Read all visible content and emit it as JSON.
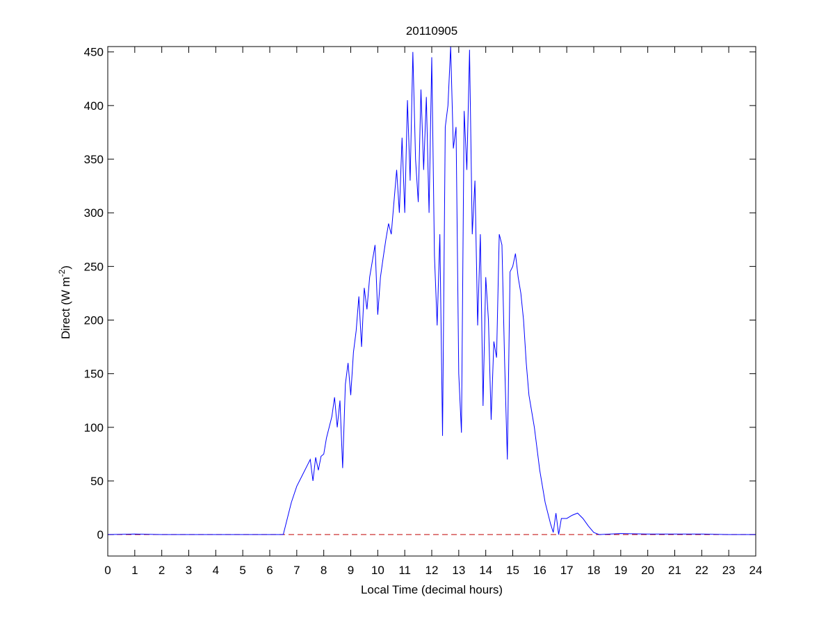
{
  "chart_data": {
    "type": "line",
    "title": "20110905",
    "xlabel": "Local Time (decimal hours)",
    "ylabel": {
      "text": "Direct (W m",
      "sup": "-2",
      "end": ")"
    },
    "x": [
      0,
      1,
      2,
      3,
      4,
      5,
      6,
      6.5,
      6.6,
      6.8,
      7,
      7.2,
      7.4,
      7.5,
      7.6,
      7.7,
      7.8,
      7.9,
      8,
      8.1,
      8.2,
      8.3,
      8.4,
      8.5,
      8.6,
      8.7,
      8.8,
      8.9,
      9,
      9.1,
      9.2,
      9.3,
      9.4,
      9.5,
      9.6,
      9.7,
      9.8,
      9.9,
      10,
      10.1,
      10.2,
      10.3,
      10.4,
      10.5,
      10.6,
      10.7,
      10.8,
      10.9,
      11,
      11.1,
      11.2,
      11.3,
      11.4,
      11.5,
      11.6,
      11.7,
      11.8,
      11.9,
      12,
      12.1,
      12.2,
      12.3,
      12.4,
      12.5,
      12.6,
      12.7,
      12.8,
      12.9,
      13,
      13.1,
      13.2,
      13.3,
      13.4,
      13.5,
      13.6,
      13.7,
      13.8,
      13.9,
      14,
      14.1,
      14.2,
      14.3,
      14.4,
      14.5,
      14.6,
      14.7,
      14.8,
      14.9,
      15,
      15.1,
      15.2,
      15.3,
      15.4,
      15.5,
      15.6,
      15.8,
      16,
      16.2,
      16.4,
      16.5,
      16.6,
      16.7,
      16.8,
      17,
      17.2,
      17.4,
      17.6,
      17.8,
      18,
      18.2,
      19,
      20,
      21,
      22,
      23,
      24
    ],
    "series": [
      {
        "color": "#0000ff",
        "values": [
          0,
          0.5,
          0,
          0,
          0,
          0,
          0,
          0,
          10,
          30,
          45,
          55,
          65,
          70,
          50,
          72,
          60,
          73,
          75,
          90,
          100,
          110,
          128,
          100,
          125,
          62,
          140,
          160,
          130,
          170,
          190,
          222,
          175,
          230,
          210,
          240,
          255,
          270,
          205,
          240,
          258,
          275,
          290,
          280,
          310,
          340,
          300,
          370,
          300,
          405,
          330,
          450,
          350,
          310,
          415,
          340,
          408,
          300,
          445,
          260,
          195,
          280,
          92,
          380,
          400,
          455,
          360,
          380,
          150,
          95,
          395,
          340,
          452,
          280,
          330,
          195,
          280,
          120,
          240,
          200,
          107,
          180,
          165,
          280,
          270,
          160,
          70,
          245,
          250,
          262,
          240,
          225,
          200,
          160,
          130,
          100,
          60,
          30,
          10,
          2,
          20,
          0,
          15,
          15,
          18,
          20,
          15,
          8,
          2,
          0,
          1,
          0.5,
          0.5,
          0.5,
          0,
          0
        ]
      }
    ],
    "hlines": [
      {
        "y": 0,
        "color": "#c00000",
        "style": "dashed"
      }
    ],
    "xlim": [
      0,
      24
    ],
    "xticks": [
      0,
      1,
      2,
      3,
      4,
      5,
      6,
      7,
      8,
      9,
      10,
      11,
      12,
      13,
      14,
      15,
      16,
      17,
      18,
      19,
      20,
      21,
      22,
      23,
      24
    ],
    "ylim": [
      -20,
      455
    ],
    "yticks": [
      0,
      50,
      100,
      150,
      200,
      250,
      300,
      350,
      400,
      450
    ],
    "grid": false
  }
}
